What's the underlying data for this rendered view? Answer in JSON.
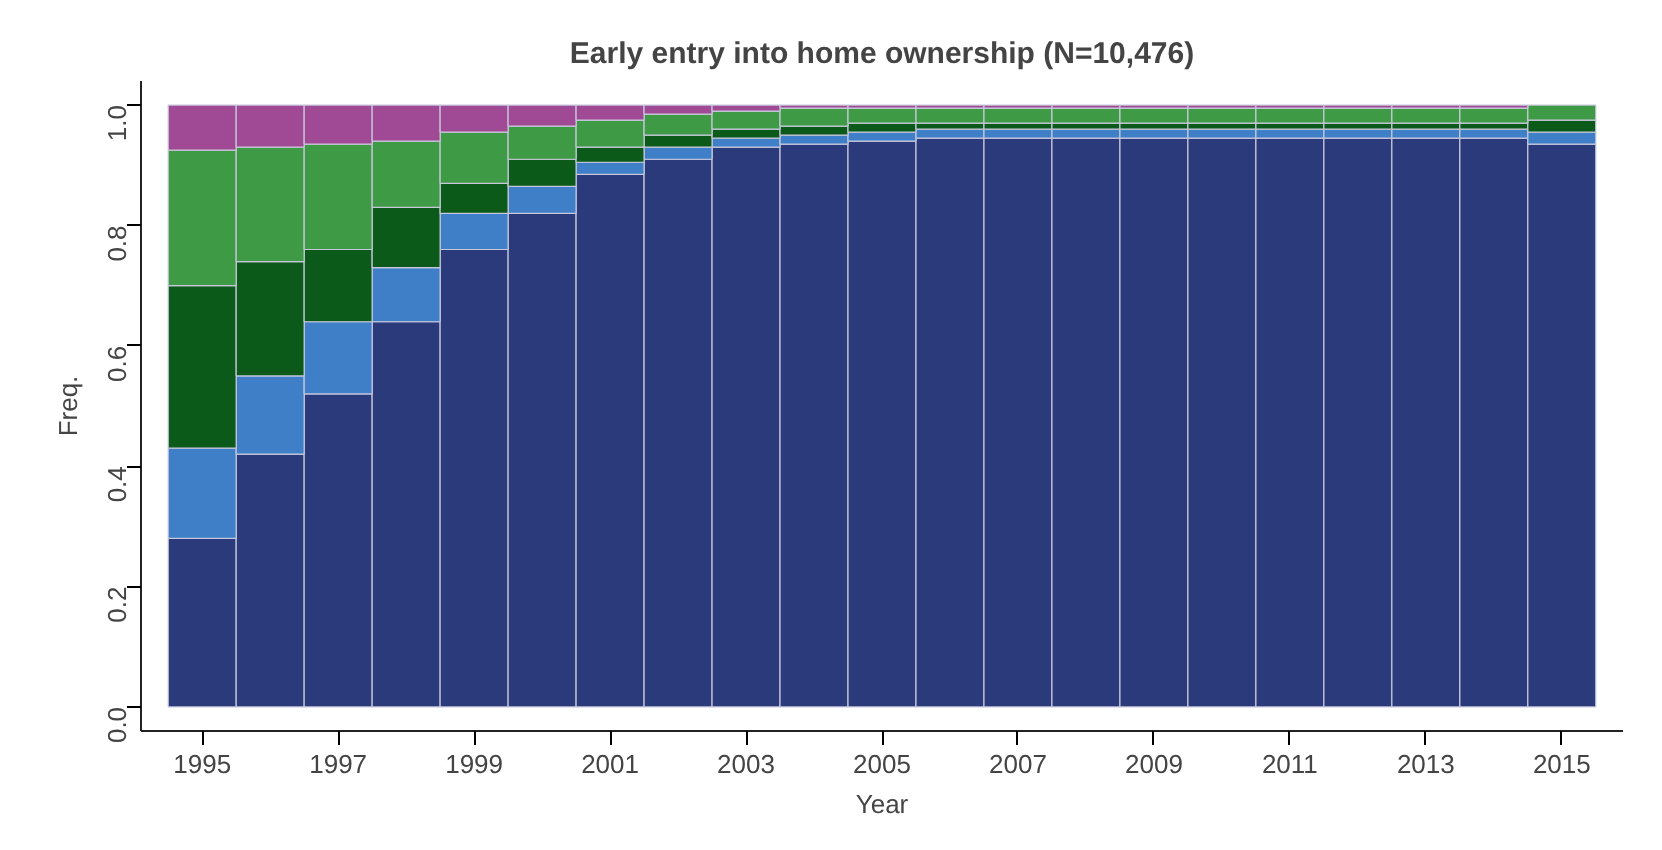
{
  "chart_data": {
    "type": "bar",
    "stacked": true,
    "title": "Early entry into home ownership (N=10,476)",
    "xlabel": "Year",
    "ylabel": "Freq.",
    "categories": [
      "1995",
      null,
      "1997",
      null,
      "1999",
      null,
      "2001",
      null,
      "2003",
      null,
      "2005",
      null,
      "2007",
      null,
      "2009",
      null,
      "2011",
      null,
      "2013",
      null,
      "2015"
    ],
    "ylim": [
      0,
      1
    ],
    "yticks": [
      {
        "value": 0,
        "label": "0.0"
      },
      {
        "value": 0.2,
        "label": "0.2"
      },
      {
        "value": 0.4,
        "label": "0.4"
      },
      {
        "value": 0.6,
        "label": "0.6"
      },
      {
        "value": 0.8,
        "label": "0.8"
      },
      {
        "value": 1,
        "label": "1.0"
      }
    ],
    "grid": false,
    "series": [
      {
        "color": "#2b3a7a",
        "values": [
          0.28,
          0.42,
          0.52,
          0.64,
          0.76,
          0.82,
          0.885,
          0.91,
          0.93,
          0.935,
          0.94,
          0.945,
          0.945,
          0.945,
          0.945,
          0.945,
          0.945,
          0.945,
          0.945,
          0.945,
          0.935
        ]
      },
      {
        "color": "#3f7fc8",
        "values": [
          0.15,
          0.13,
          0.12,
          0.09,
          0.06,
          0.045,
          0.02,
          0.02,
          0.015,
          0.015,
          0.015,
          0.015,
          0.015,
          0.015,
          0.015,
          0.015,
          0.015,
          0.015,
          0.015,
          0.015,
          0.02
        ]
      },
      {
        "color": "#0b5a1a",
        "values": [
          0.27,
          0.19,
          0.12,
          0.1,
          0.05,
          0.045,
          0.025,
          0.02,
          0.015,
          0.015,
          0.015,
          0.01,
          0.01,
          0.01,
          0.01,
          0.01,
          0.01,
          0.01,
          0.01,
          0.01,
          0.02
        ]
      },
      {
        "color": "#3f9a46",
        "values": [
          0.225,
          0.19,
          0.175,
          0.11,
          0.085,
          0.055,
          0.045,
          0.035,
          0.03,
          0.03,
          0.025,
          0.025,
          0.025,
          0.025,
          0.025,
          0.025,
          0.025,
          0.025,
          0.025,
          0.025,
          0.025
        ]
      },
      {
        "color": "#a04a95",
        "values": [
          0.075,
          0.07,
          0.065,
          0.06,
          0.045,
          0.035,
          0.025,
          0.015,
          0.01,
          0.005,
          0.005,
          0.005,
          0.005,
          0.005,
          0.005,
          0.005,
          0.005,
          0.005,
          0.005,
          0.005,
          null
        ]
      }
    ]
  }
}
